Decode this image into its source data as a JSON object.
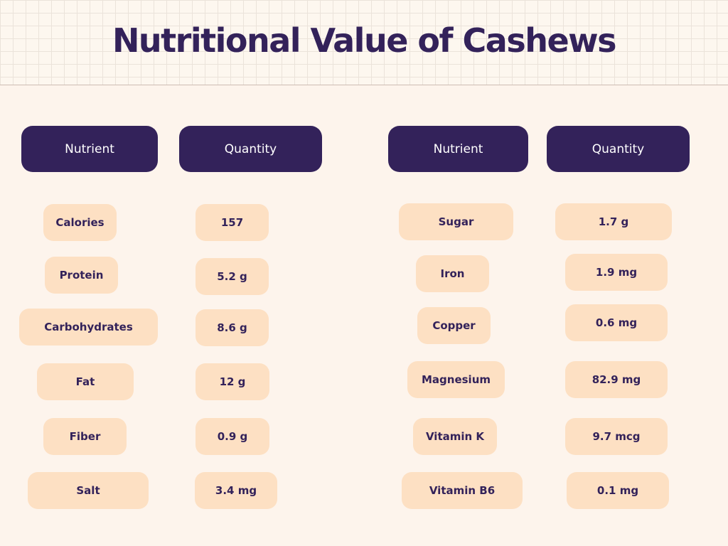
{
  "title": "Nutritional Value of Cashews",
  "colors": {
    "header_fill": "#33225a",
    "cell_fill": "#fde0c3",
    "background": "#fdf4ec"
  },
  "tables": [
    {
      "headers": [
        "Nutrient",
        "Quantity"
      ],
      "rows": [
        {
          "nutrient": "Calories",
          "quantity": "157"
        },
        {
          "nutrient": "Protein",
          "quantity": "5.2 g"
        },
        {
          "nutrient": "Carbohydrates",
          "quantity": "8.6 g"
        },
        {
          "nutrient": "Fat",
          "quantity": "12 g"
        },
        {
          "nutrient": "Fiber",
          "quantity": "0.9 g"
        },
        {
          "nutrient": "Salt",
          "quantity": "3.4 mg"
        }
      ]
    },
    {
      "headers": [
        "Nutrient",
        "Quantity"
      ],
      "rows": [
        {
          "nutrient": "Sugar",
          "quantity": "1.7 g"
        },
        {
          "nutrient": "Iron",
          "quantity": "1.9 mg"
        },
        {
          "nutrient": "Copper",
          "quantity": "0.6 mg"
        },
        {
          "nutrient": "Magnesium",
          "quantity": "82.9 mg"
        },
        {
          "nutrient": "Vitamin K",
          "quantity": "9.7 mcg"
        },
        {
          "nutrient": "Vitamin B6",
          "quantity": "0.1 mg"
        }
      ]
    }
  ]
}
